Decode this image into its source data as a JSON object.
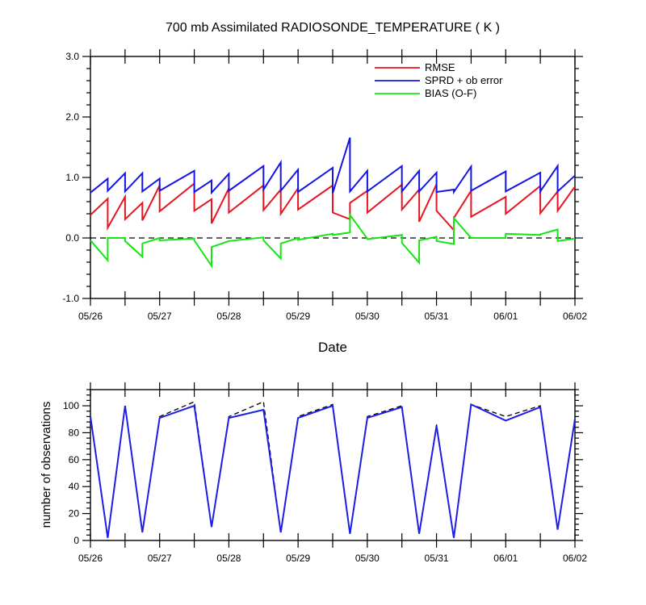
{
  "chart_data": [
    {
      "type": "line",
      "title": "700 mb Assimilated RADIOSONDE_TEMPERATURE ( K )",
      "xlabel": "Date",
      "ylabel": "",
      "ylim": [
        -1.0,
        3.0
      ],
      "yticks": [
        "-1.0",
        "0.0",
        "1.0",
        "2.0",
        "3.0"
      ],
      "xticks": [
        "05/26",
        "05/27",
        "05/28",
        "05/29",
        "05/30",
        "05/31",
        "06/01",
        "06/02"
      ],
      "legend_position": "top-right",
      "zero_line": "dashed",
      "series": [
        {
          "name": "RMSE",
          "color": "#e8141e",
          "points": [
            [
              0,
              0.38
            ],
            [
              0.25,
              0.65
            ],
            [
              0.25,
              0.17
            ],
            [
              0.5,
              0.68
            ],
            [
              0.5,
              0.31
            ],
            [
              0.75,
              0.58
            ],
            [
              0.75,
              0.29
            ],
            [
              1.0,
              0.87
            ],
            [
              1.0,
              0.44
            ],
            [
              1.5,
              0.9
            ],
            [
              1.5,
              0.45
            ],
            [
              1.75,
              0.64
            ],
            [
              1.75,
              0.24
            ],
            [
              2.0,
              0.82
            ],
            [
              2.0,
              0.42
            ],
            [
              2.5,
              0.87
            ],
            [
              2.5,
              0.46
            ],
            [
              2.75,
              0.8
            ],
            [
              2.75,
              0.4
            ],
            [
              3.0,
              0.82
            ],
            [
              3.0,
              0.47
            ],
            [
              3.5,
              0.87
            ],
            [
              3.5,
              0.42
            ],
            [
              3.75,
              0.31
            ],
            [
              3.75,
              0.58
            ],
            [
              4.0,
              0.78
            ],
            [
              4.0,
              0.42
            ],
            [
              4.5,
              0.88
            ],
            [
              4.5,
              0.47
            ],
            [
              4.75,
              0.8
            ],
            [
              4.75,
              0.27
            ],
            [
              5.0,
              0.89
            ],
            [
              5.0,
              0.45
            ],
            [
              5.25,
              0.13
            ],
            [
              5.25,
              0.33
            ],
            [
              5.5,
              0.78
            ],
            [
              5.5,
              0.35
            ],
            [
              6.0,
              0.68
            ],
            [
              6.0,
              0.4
            ],
            [
              6.5,
              0.86
            ],
            [
              6.5,
              0.41
            ],
            [
              6.75,
              0.77
            ],
            [
              6.75,
              0.45
            ],
            [
              7.0,
              0.85
            ]
          ]
        },
        {
          "name": "SPRD + ob error",
          "color": "#1414e6",
          "points": [
            [
              0,
              0.75
            ],
            [
              0.25,
              0.98
            ],
            [
              0.25,
              0.78
            ],
            [
              0.5,
              1.07
            ],
            [
              0.5,
              0.77
            ],
            [
              0.75,
              1.07
            ],
            [
              0.75,
              0.77
            ],
            [
              1.0,
              0.98
            ],
            [
              1.0,
              0.78
            ],
            [
              1.5,
              1.11
            ],
            [
              1.5,
              0.76
            ],
            [
              1.75,
              0.95
            ],
            [
              1.75,
              0.75
            ],
            [
              2.0,
              1.06
            ],
            [
              2.0,
              0.78
            ],
            [
              2.5,
              1.19
            ],
            [
              2.5,
              0.8
            ],
            [
              2.75,
              1.25
            ],
            [
              2.75,
              0.78
            ],
            [
              3.0,
              1.13
            ],
            [
              3.0,
              0.76
            ],
            [
              3.5,
              1.16
            ],
            [
              3.5,
              0.74
            ],
            [
              3.75,
              1.66
            ],
            [
              3.75,
              0.77
            ],
            [
              4.0,
              1.11
            ],
            [
              4.0,
              0.77
            ],
            [
              4.5,
              1.19
            ],
            [
              4.5,
              0.77
            ],
            [
              4.75,
              1.11
            ],
            [
              4.75,
              0.77
            ],
            [
              5.0,
              1.08
            ],
            [
              5.0,
              0.76
            ],
            [
              5.25,
              0.8
            ],
            [
              5.25,
              0.76
            ],
            [
              5.5,
              1.18
            ],
            [
              5.5,
              0.78
            ],
            [
              6.0,
              1.1
            ],
            [
              6.0,
              0.77
            ],
            [
              6.5,
              1.08
            ],
            [
              6.5,
              0.77
            ],
            [
              6.75,
              1.19
            ],
            [
              6.75,
              0.77
            ],
            [
              7.0,
              1.03
            ]
          ]
        },
        {
          "name": "BIAS (O-F)",
          "color": "#14e614",
          "points": [
            [
              0,
              -0.04
            ],
            [
              0.25,
              -0.37
            ],
            [
              0.25,
              0.0
            ],
            [
              0.5,
              0.0
            ],
            [
              0.5,
              -0.05
            ],
            [
              0.75,
              -0.31
            ],
            [
              0.75,
              -0.09
            ],
            [
              1.0,
              0.0
            ],
            [
              1.0,
              -0.04
            ],
            [
              1.5,
              -0.01
            ],
            [
              1.5,
              -0.04
            ],
            [
              1.75,
              -0.46
            ],
            [
              1.75,
              -0.15
            ],
            [
              2.0,
              -0.05
            ],
            [
              2.0,
              -0.05
            ],
            [
              2.5,
              0.01
            ],
            [
              2.5,
              -0.04
            ],
            [
              2.75,
              -0.34
            ],
            [
              2.75,
              -0.09
            ],
            [
              3.0,
              0.0
            ],
            [
              3.0,
              -0.03
            ],
            [
              3.5,
              0.07
            ],
            [
              3.5,
              0.05
            ],
            [
              3.75,
              0.09
            ],
            [
              3.75,
              0.38
            ],
            [
              4.0,
              -0.01
            ],
            [
              4.0,
              -0.02
            ],
            [
              4.5,
              0.05
            ],
            [
              4.5,
              -0.08
            ],
            [
              4.75,
              -0.41
            ],
            [
              4.75,
              -0.04
            ],
            [
              5.0,
              0.02
            ],
            [
              5.0,
              -0.05
            ],
            [
              5.25,
              -0.1
            ],
            [
              5.25,
              0.33
            ],
            [
              5.5,
              0.0
            ],
            [
              5.5,
              0.0
            ],
            [
              6.0,
              0.0
            ],
            [
              6.0,
              0.07
            ],
            [
              6.5,
              0.05
            ],
            [
              6.5,
              0.06
            ],
            [
              6.75,
              0.14
            ],
            [
              6.75,
              -0.05
            ],
            [
              7.0,
              -0.01
            ]
          ]
        }
      ]
    },
    {
      "type": "line",
      "title": "",
      "xlabel": "",
      "ylabel": "number of observations",
      "ylim": [
        0,
        112
      ],
      "yticks": [
        "0",
        "20",
        "40",
        "60",
        "80",
        "100"
      ],
      "xticks": [
        "05/26",
        "05/27",
        "05/28",
        "05/29",
        "05/30",
        "05/31",
        "06/01",
        "06/02"
      ],
      "series": [
        {
          "style": "dashed",
          "color": "#000000",
          "points": [
            [
              0,
              92
            ],
            [
              0.25,
              2
            ],
            [
              0.5,
              100
            ],
            [
              0.75,
              6
            ],
            [
              1.0,
              92
            ],
            [
              1.5,
              103
            ],
            [
              1.75,
              10
            ],
            [
              2.0,
              92
            ],
            [
              2.5,
              103
            ],
            [
              2.75,
              6
            ],
            [
              3.0,
              92
            ],
            [
              3.5,
              101
            ],
            [
              3.75,
              5
            ],
            [
              4.0,
              92
            ],
            [
              4.5,
              100
            ],
            [
              4.75,
              5
            ],
            [
              5.0,
              86
            ],
            [
              5.25,
              2
            ],
            [
              5.5,
              101
            ],
            [
              6.0,
              92
            ],
            [
              6.5,
              100
            ],
            [
              6.75,
              8
            ],
            [
              7.0,
              91
            ]
          ]
        },
        {
          "style": "solid",
          "color": "#1e1ee6",
          "points": [
            [
              0,
              92
            ],
            [
              0.25,
              2
            ],
            [
              0.5,
              100
            ],
            [
              0.75,
              6
            ],
            [
              1.0,
              91
            ],
            [
              1.5,
              100
            ],
            [
              1.75,
              10
            ],
            [
              2.0,
              91
            ],
            [
              2.5,
              97
            ],
            [
              2.75,
              6
            ],
            [
              3.0,
              91
            ],
            [
              3.5,
              100
            ],
            [
              3.75,
              5
            ],
            [
              4.0,
              91
            ],
            [
              4.5,
              99
            ],
            [
              4.75,
              5
            ],
            [
              5.0,
              85
            ],
            [
              5.25,
              2
            ],
            [
              5.5,
              101
            ],
            [
              6.0,
              89
            ],
            [
              6.5,
              99
            ],
            [
              6.75,
              8
            ],
            [
              7.0,
              90
            ]
          ]
        }
      ]
    }
  ]
}
